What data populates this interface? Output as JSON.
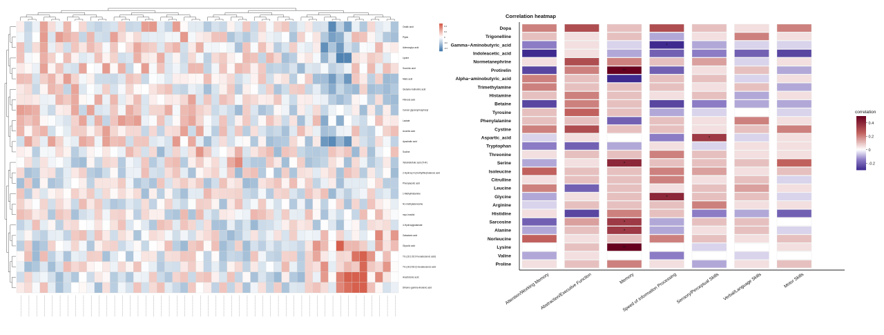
{
  "caption": "",
  "colors": {
    "positive": "#67001f",
    "positive_mid": "#c1615e",
    "neutral": "#ffffff",
    "negative": "#3f2b8f",
    "negative_mid": "#8c7cc5",
    "left_positive": "#d6604d",
    "left_negative": "#4a7fb0"
  },
  "chart_data": [
    {
      "type": "heatmap",
      "title": "Correlation heatmap",
      "xlabel": "",
      "ylabel": "",
      "columns": [
        "Attention/Working Memory",
        "Abstraction/Executive Function",
        "Memory",
        "Speed of Information Processing",
        "Sensory/Perceptual Skills",
        "Verbal/Language Skills",
        "Motor Skills"
      ],
      "rows": [
        "Dopa",
        "Trigonelline",
        "Gamma−Aminobutyric_acid",
        "Indoleacetic_acid",
        "Normetanephrine",
        "Protirelin",
        "Alpha−aminobutyric_acid",
        "Trimethylamine",
        "Histamine",
        "Betaine",
        "Tyrosine",
        "Phenylalanine",
        "Cystine",
        "Aspartic_acid",
        "Tryptophan",
        "Threonine",
        "Serine",
        "Isoleucine",
        "Citrulline",
        "Leucine",
        "Glycine",
        "Arginine",
        "Histidine",
        "Sarcosine",
        "Alanine",
        "Norleucine",
        "Lysine",
        "Valine",
        "Proline"
      ],
      "values": [
        [
          0.2,
          0.3,
          0.1,
          0.3,
          0.1,
          0.05,
          0.2
        ],
        [
          0.1,
          0.05,
          0.1,
          -0.1,
          0.05,
          0.2,
          0.05
        ],
        [
          -0.15,
          0.05,
          -0.05,
          -0.42,
          -0.1,
          -0.05,
          -0.05
        ],
        [
          -0.3,
          0.05,
          -0.1,
          -0.2,
          -0.15,
          -0.2,
          -0.25
        ],
        [
          0.05,
          0.3,
          0.2,
          0.1,
          0.15,
          -0.05,
          0.05
        ],
        [
          -0.25,
          0.2,
          0.5,
          -0.2,
          0.05,
          0.1,
          -0.1
        ],
        [
          0.2,
          0.1,
          -0.35,
          0.1,
          0.1,
          -0.05,
          0.05
        ],
        [
          0.2,
          0.1,
          0.1,
          0.1,
          0.05,
          0.1,
          -0.1
        ],
        [
          0.1,
          0.2,
          0.1,
          0.05,
          0.1,
          -0.1,
          0.05
        ],
        [
          -0.25,
          0.2,
          0.1,
          -0.25,
          -0.15,
          -0.1,
          -0.1
        ],
        [
          0.1,
          0.25,
          0.1,
          -0.1,
          -0.05,
          0.0,
          -0.05
        ],
        [
          0.1,
          0.1,
          -0.2,
          0.1,
          0.05,
          0.2,
          0.05
        ],
        [
          0.2,
          0.3,
          0.1,
          0.1,
          0.05,
          0.1,
          0.2
        ],
        [
          -0.05,
          0.05,
          0.0,
          -0.15,
          0.35,
          -0.05,
          0.05
        ],
        [
          -0.15,
          -0.2,
          -0.1,
          0.05,
          -0.05,
          0.05,
          0.05
        ],
        [
          0.05,
          0.1,
          0.1,
          0.2,
          0.1,
          0.05,
          0.05
        ],
        [
          -0.1,
          0.05,
          0.4,
          0.1,
          0.1,
          0.1,
          0.25
        ],
        [
          0.25,
          0.1,
          0.1,
          0.2,
          0.15,
          0.05,
          0.1
        ],
        [
          0.05,
          0.1,
          0.1,
          0.2,
          0.05,
          0.1,
          -0.05
        ],
        [
          0.2,
          -0.2,
          0.1,
          0.05,
          0.1,
          0.15,
          0.05
        ],
        [
          -0.1,
          0.05,
          0.1,
          0.4,
          0.1,
          0.1,
          -0.05
        ],
        [
          -0.05,
          0.1,
          0.1,
          0.1,
          0.2,
          0.05,
          0.05
        ],
        [
          0.05,
          -0.25,
          0.2,
          0.1,
          -0.15,
          -0.1,
          -0.2
        ],
        [
          -0.2,
          0.15,
          0.35,
          -0.1,
          0.1,
          0.1,
          0.0
        ],
        [
          -0.1,
          0.1,
          0.35,
          -0.1,
          0.05,
          0.1,
          -0.05
        ],
        [
          0.25,
          0.05,
          0.1,
          0.2,
          0.1,
          0.05,
          0.1
        ],
        [
          0.0,
          0.1,
          0.5,
          0.0,
          -0.05,
          0.0,
          0.05
        ],
        [
          -0.1,
          0.05,
          0.0,
          -0.15,
          0.0,
          -0.05,
          0.0
        ],
        [
          0.05,
          0.1,
          0.2,
          0.05,
          -0.1,
          0.05,
          0.1
        ]
      ],
      "significance": [
        {
          "row": "Gamma−Aminobutyric_acid",
          "column": "Speed of Information Processing",
          "label": "*"
        },
        {
          "row": "Protirelin",
          "column": "Memory",
          "label": "**"
        },
        {
          "row": "Aspartic_acid",
          "column": "Sensory/Perceptual Skills",
          "label": "*"
        },
        {
          "row": "Serine",
          "column": "Memory",
          "label": "*"
        },
        {
          "row": "Glycine",
          "column": "Speed of Information Processing",
          "label": "*"
        },
        {
          "row": "Sarcosine",
          "column": "Memory",
          "label": "*"
        },
        {
          "row": "Alanine",
          "column": "Memory",
          "label": "*"
        },
        {
          "row": "Lysine",
          "column": "Memory",
          "label": "**"
        }
      ],
      "legend": {
        "title": "correlation",
        "ticks": [
          0.4,
          0.2,
          0.0,
          -0.2
        ],
        "range": [
          -0.3,
          0.5
        ],
        "placement": "right"
      }
    },
    {
      "type": "heatmap",
      "title": "",
      "clustered": true,
      "rows": [
        "Oxalic acid",
        "Pipds",
        "Adenosylpc acid",
        "Lysine",
        "Succinic acid",
        "Malic acid",
        "Glutamo-butirulinic acid",
        "Fibrosis acid",
        "Cancer glycerophosphoryl",
        "Lactate",
        "Aconitic acid",
        "Apachalin acid",
        "Sucline",
        "Tetrahidrofolic acid (THF)",
        "2-Hydroxy-4-(methylthio)butanoic acid",
        "Phenylacetic acid",
        "1-Methylhistamine",
        "N1-methyladenosine",
        "myo-Inositol",
        "4-Hydroxyglutamate",
        "Galactaric acid",
        "Glycolic acid",
        "TG (16:1/16:0 hexadecanoic acid)",
        "TG (18:2/18:2) hexadecanoic acid",
        "Arachidonic acid",
        "Dihomo-gamma-linolenic acid"
      ],
      "columns": [],
      "legend": {
        "ticks": [
          0.4,
          0.2,
          0,
          -0.2,
          -0.4
        ]
      }
    }
  ]
}
